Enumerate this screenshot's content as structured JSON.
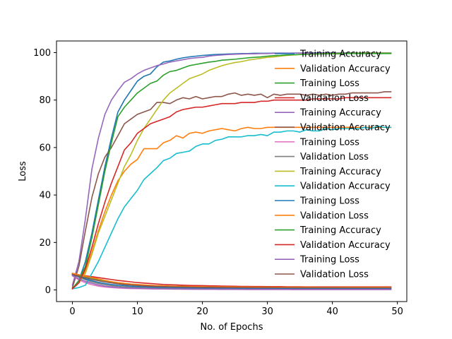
{
  "chart_data": {
    "type": "line",
    "title": "",
    "xlabel": "No. of Epochs",
    "ylabel": "Loss",
    "xlim": [
      -2.45,
      51.45
    ],
    "ylim": [
      -4.9,
      104.9
    ],
    "xticks": [
      0,
      10,
      20,
      30,
      40,
      50
    ],
    "yticks": [
      0,
      20,
      40,
      60,
      80,
      100
    ],
    "grid": false,
    "legend_position": "right",
    "x": [
      0,
      1,
      2,
      3,
      4,
      5,
      6,
      7,
      8,
      9,
      10,
      11,
      12,
      13,
      14,
      15,
      16,
      17,
      18,
      19,
      20,
      21,
      22,
      23,
      24,
      25,
      26,
      27,
      28,
      29,
      30,
      31,
      32,
      33,
      34,
      35,
      36,
      37,
      38,
      39,
      40,
      41,
      42,
      43,
      44,
      45,
      46,
      47,
      48,
      49
    ],
    "series": [
      {
        "name": "Training Accuracy",
        "color": "#1f77b4",
        "values": [
          0.5,
          4,
          12,
          24,
          38,
          52,
          64,
          75,
          80,
          84,
          88,
          90,
          91,
          94,
          96,
          96.5,
          97.2,
          97.8,
          98.2,
          98.5,
          98.8,
          99,
          99.2,
          99.3,
          99.4,
          99.5,
          99.6,
          99.6,
          99.7,
          99.7,
          99.7,
          99.8,
          99.8,
          99.8,
          99.8,
          99.8,
          99.9,
          99.9,
          99.9,
          99.9,
          99.9,
          99.9,
          99.9,
          99.9,
          99.9,
          99.9,
          99.9,
          99.9,
          99.9,
          99.9
        ]
      },
      {
        "name": "Validation Accuracy",
        "color": "#ff7f0e",
        "values": [
          0.5,
          3,
          8,
          16,
          25,
          33,
          40,
          46,
          50,
          53,
          55,
          59.5,
          59.5,
          59.5,
          62,
          63,
          65,
          64,
          66,
          66.5,
          66,
          67,
          67.5,
          68,
          67.5,
          67,
          68,
          68.5,
          68,
          68,
          68.5,
          68.5,
          68.5,
          68.5,
          68.5,
          68.5,
          68.5,
          68.5,
          68.5,
          68.5,
          68.5,
          68.5,
          68.5,
          68.5,
          68.5,
          68.5,
          68.5,
          68.5,
          68.5,
          68.5
        ]
      },
      {
        "name": "Training Loss",
        "color": "#2ca02c",
        "values": [
          7,
          6.2,
          5.6,
          5,
          4.4,
          3.9,
          3.4,
          3,
          2.7,
          2.4,
          2.2,
          2,
          1.9,
          1.8,
          1.7,
          1.6,
          1.55,
          1.5,
          1.45,
          1.4,
          1.35,
          1.3,
          1.28,
          1.25,
          1.22,
          1.2,
          1.18,
          1.16,
          1.14,
          1.12,
          1.1,
          1.08,
          1.06,
          1.05,
          1.04,
          1.03,
          1.02,
          1.01,
          1,
          1,
          1,
          1,
          1,
          1,
          1,
          1,
          1,
          1,
          1,
          1
        ]
      },
      {
        "name": "Validation Loss",
        "color": "#d62728",
        "values": [
          6.8,
          6.4,
          6,
          5.6,
          5.2,
          4.8,
          4.4,
          4,
          3.7,
          3.4,
          3.1,
          2.9,
          2.7,
          2.5,
          2.3,
          2.2,
          2.1,
          2,
          1.9,
          1.85,
          1.8,
          1.75,
          1.7,
          1.65,
          1.6,
          1.55,
          1.5,
          1.5,
          1.45,
          1.45,
          1.4,
          1.4,
          1.4,
          1.35,
          1.35,
          1.35,
          1.3,
          1.3,
          1.3,
          1.3,
          1.3,
          1.3,
          1.3,
          1.3,
          1.3,
          1.3,
          1.3,
          1.3,
          1.3,
          1.3
        ]
      },
      {
        "name": "Training Accuracy",
        "color": "#9467bd",
        "values": [
          2,
          12,
          30,
          51,
          64,
          74,
          80,
          84,
          87.5,
          89,
          91,
          92.5,
          93.5,
          94.5,
          95.2,
          96,
          96.5,
          97,
          97.5,
          97.8,
          98,
          98.5,
          98.8,
          99,
          99.2,
          99.3,
          99.4,
          99.5,
          99.5,
          99.6,
          99.6,
          99.7,
          99.7,
          99.7,
          99.8,
          99.8,
          99.8,
          99.8,
          99.8,
          99.8,
          99.8,
          99.8,
          99.8,
          99.8,
          99.8,
          99.8,
          99.8,
          99.8,
          99.8,
          99.8
        ]
      },
      {
        "name": "Validation Accuracy",
        "color": "#8c564b",
        "values": [
          1,
          10,
          25,
          39,
          49,
          56,
          60,
          65,
          70,
          72,
          74,
          75,
          76,
          79,
          79,
          78.5,
          80,
          81,
          80.5,
          81.5,
          80.5,
          81,
          81.5,
          81.5,
          82.5,
          83,
          82,
          82.5,
          82,
          82.5,
          81,
          82.5,
          82,
          82.5,
          82.5,
          82.5,
          82,
          82.5,
          82,
          82.5,
          82,
          82.5,
          82.5,
          83,
          83,
          83,
          83,
          83,
          83.5,
          83.5
        ]
      },
      {
        "name": "Training Loss",
        "color": "#e377c2",
        "values": [
          6,
          4.2,
          3,
          2.2,
          1.6,
          1.2,
          1,
          0.8,
          0.7,
          0.6,
          0.55,
          0.5,
          0.45,
          0.4,
          0.38,
          0.35,
          0.33,
          0.3,
          0.28,
          0.27,
          0.25,
          0.24,
          0.23,
          0.22,
          0.21,
          0.2,
          0.2,
          0.19,
          0.18,
          0.18,
          0.17,
          0.17,
          0.16,
          0.16,
          0.15,
          0.15,
          0.15,
          0.14,
          0.14,
          0.14,
          0.13,
          0.13,
          0.13,
          0.13,
          0.12,
          0.12,
          0.12,
          0.12,
          0.12,
          0.12
        ]
      },
      {
        "name": "Validation Loss",
        "color": "#7f7f7f",
        "values": [
          6.5,
          5.4,
          4.3,
          3.4,
          2.7,
          2.2,
          1.8,
          1.5,
          1.3,
          1.15,
          1.05,
          0.95,
          0.9,
          0.85,
          0.8,
          0.78,
          0.75,
          0.72,
          0.7,
          0.68,
          0.66,
          0.65,
          0.64,
          0.63,
          0.62,
          0.61,
          0.6,
          0.6,
          0.59,
          0.59,
          0.58,
          0.58,
          0.58,
          0.57,
          0.57,
          0.57,
          0.57,
          0.56,
          0.56,
          0.56,
          0.56,
          0.56,
          0.56,
          0.56,
          0.56,
          0.56,
          0.56,
          0.56,
          0.56,
          0.56
        ]
      },
      {
        "name": "Training Accuracy",
        "color": "#bcbd22",
        "values": [
          0.5,
          3,
          7,
          15,
          24,
          31,
          38,
          45,
          52,
          57,
          63,
          68,
          72,
          76,
          80,
          83,
          85,
          87,
          89,
          90,
          91,
          92.5,
          93.5,
          94.5,
          95.2,
          95.8,
          96.2,
          96.8,
          97.2,
          97.6,
          98,
          98.2,
          98.5,
          98.8,
          99,
          99.2,
          99.3,
          99.4,
          99.5,
          99.6,
          99.6,
          99.7,
          99.7,
          99.7,
          99.8,
          99.8,
          99.8,
          99.8,
          99.8,
          99.8
        ]
      },
      {
        "name": "Validation Accuracy",
        "color": "#17becf",
        "values": [
          0.5,
          1,
          2,
          7,
          12,
          18,
          24,
          30,
          35,
          38.5,
          42,
          46.5,
          49,
          51.5,
          54.5,
          55.5,
          57.5,
          58,
          58.5,
          60.5,
          61.5,
          61.5,
          63,
          63.5,
          64.5,
          64.5,
          64.5,
          65,
          65,
          65.5,
          65,
          66.5,
          66.5,
          67,
          67,
          66.5,
          67.5,
          67,
          67,
          68,
          67.5,
          68,
          68,
          68,
          68,
          68.5,
          68,
          69,
          68.5,
          68.5
        ]
      },
      {
        "name": "Training Loss",
        "color": "#1f77b4",
        "values": [
          6.5,
          5.6,
          4.7,
          3.9,
          3.2,
          2.7,
          2.3,
          2,
          1.8,
          1.6,
          1.45,
          1.35,
          1.25,
          1.15,
          1.1,
          1.05,
          1,
          0.95,
          0.9,
          0.88,
          0.85,
          0.82,
          0.8,
          0.78,
          0.76,
          0.74,
          0.72,
          0.71,
          0.7,
          0.69,
          0.68,
          0.67,
          0.66,
          0.65,
          0.64,
          0.64,
          0.63,
          0.63,
          0.62,
          0.62,
          0.61,
          0.61,
          0.61,
          0.6,
          0.6,
          0.6,
          0.6,
          0.6,
          0.6,
          0.6
        ]
      },
      {
        "name": "Validation Loss",
        "color": "#ff7f0e",
        "values": [
          7,
          6.4,
          5.8,
          5.2,
          4.6,
          4,
          3.5,
          3.1,
          2.8,
          2.5,
          2.3,
          2.1,
          1.95,
          1.8,
          1.7,
          1.6,
          1.55,
          1.5,
          1.45,
          1.4,
          1.38,
          1.35,
          1.32,
          1.3,
          1.28,
          1.26,
          1.24,
          1.22,
          1.2,
          1.2,
          1.18,
          1.18,
          1.16,
          1.16,
          1.15,
          1.15,
          1.14,
          1.14,
          1.13,
          1.13,
          1.12,
          1.12,
          1.12,
          1.12,
          1.11,
          1.11,
          1.11,
          1.1,
          1.1,
          1.1
        ]
      },
      {
        "name": "Training Accuracy",
        "color": "#2ca02c",
        "values": [
          0.5,
          4,
          10,
          22,
          36,
          50,
          62,
          73,
          77,
          80,
          83,
          85,
          87,
          88,
          90.5,
          92,
          92.5,
          93.5,
          94.5,
          95,
          95.5,
          96,
          96.3,
          96.8,
          97,
          97.2,
          97.5,
          97.8,
          98,
          98.2,
          98.5,
          98.7,
          98.8,
          99,
          99.1,
          99.2,
          99.3,
          99.4,
          99.4,
          99.5,
          99.5,
          99.5,
          99.6,
          99.6,
          99.6,
          99.6,
          99.6,
          99.6,
          99.6,
          99.6
        ]
      },
      {
        "name": "Validation Accuracy",
        "color": "#d62728",
        "values": [
          0.5,
          3,
          9,
          18,
          28,
          37,
          45,
          52,
          59,
          62,
          66,
          68,
          70,
          71,
          72,
          73,
          75,
          76,
          76.5,
          77,
          77,
          77.5,
          78,
          78.5,
          78.5,
          78.5,
          79,
          79,
          79,
          79.5,
          79.5,
          80,
          80,
          80,
          80,
          80,
          80,
          80.5,
          80.5,
          80.5,
          80.5,
          80.5,
          81,
          81,
          81,
          81,
          81,
          81,
          81,
          81
        ]
      },
      {
        "name": "Training Loss",
        "color": "#9467bd",
        "values": [
          6,
          4.7,
          3.6,
          2.8,
          2.1,
          1.6,
          1.3,
          1.05,
          0.9,
          0.78,
          0.7,
          0.62,
          0.56,
          0.5,
          0.46,
          0.42,
          0.4,
          0.38,
          0.36,
          0.34,
          0.32,
          0.31,
          0.3,
          0.29,
          0.28,
          0.27,
          0.26,
          0.26,
          0.25,
          0.25,
          0.24,
          0.24,
          0.23,
          0.23,
          0.22,
          0.22,
          0.22,
          0.21,
          0.21,
          0.21,
          0.2,
          0.2,
          0.2,
          0.2,
          0.2,
          0.2,
          0.2,
          0.2,
          0.2,
          0.2
        ]
      },
      {
        "name": "Validation Loss",
        "color": "#8c564b",
        "values": [
          6.5,
          5.8,
          5.1,
          4.5,
          3.9,
          3.4,
          3,
          2.6,
          2.3,
          2.1,
          1.9,
          1.75,
          1.6,
          1.5,
          1.42,
          1.35,
          1.3,
          1.25,
          1.2,
          1.16,
          1.12,
          1.1,
          1.08,
          1.06,
          1.04,
          1.02,
          1,
          0.99,
          0.98,
          0.97,
          0.96,
          0.95,
          0.94,
          0.94,
          0.93,
          0.93,
          0.92,
          0.92,
          0.92,
          0.91,
          0.91,
          0.91,
          0.9,
          0.9,
          0.9,
          0.9,
          0.9,
          0.9,
          0.9,
          0.9
        ]
      }
    ]
  }
}
